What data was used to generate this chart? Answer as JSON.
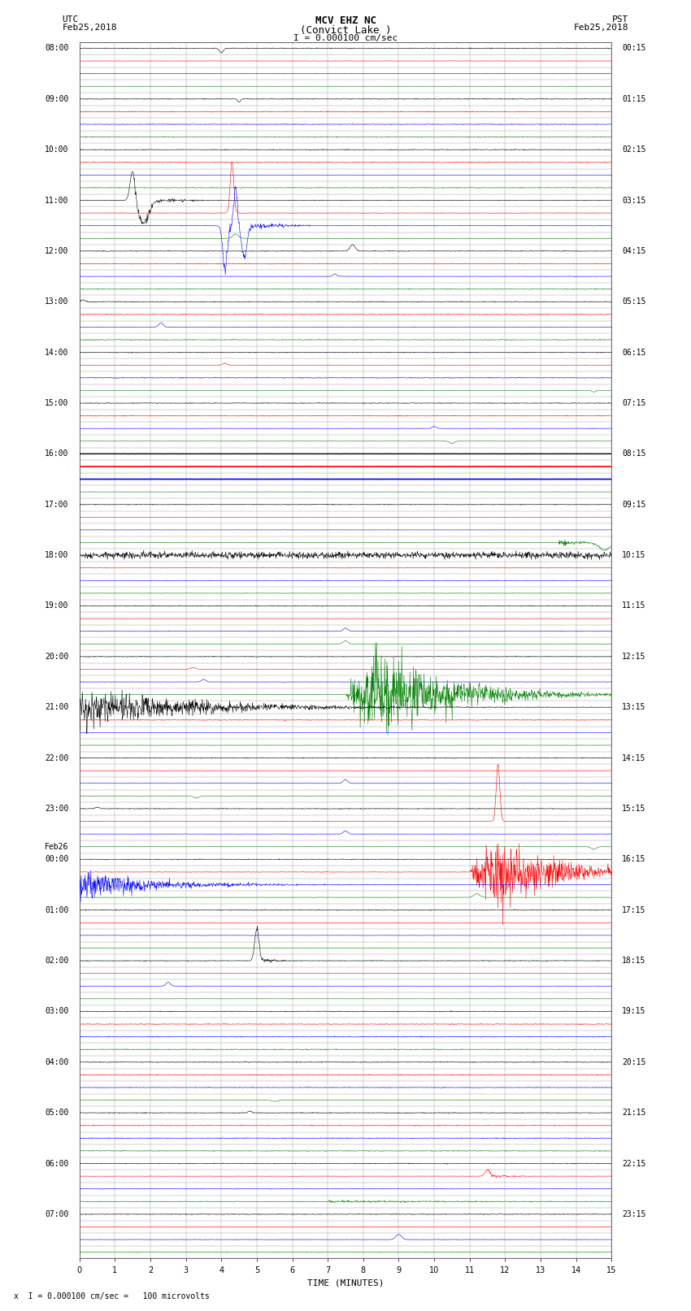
{
  "title_line1": "MCV EHZ NC",
  "title_line2": "(Convict Lake )",
  "title_scale": "I = 0.000100 cm/sec",
  "label_left_top": "UTC",
  "label_left_date": "Feb25,2018",
  "label_right_top": "PST",
  "label_right_date": "Feb25,2018",
  "xlabel": "TIME (MINUTES)",
  "footer_text": "x  I = 0.000100 cm/sec =   100 microvolts",
  "background_color": "#ffffff",
  "grid_color": "#999999",
  "trace_colors_cycle": [
    "black",
    "red",
    "blue",
    "green"
  ],
  "x_ticks": [
    0,
    1,
    2,
    3,
    4,
    5,
    6,
    7,
    8,
    9,
    10,
    11,
    12,
    13,
    14,
    15
  ],
  "xlim": [
    0,
    15
  ],
  "seed": 42,
  "right_labels_pst": [
    "00:15",
    "01:15",
    "02:15",
    "03:15",
    "04:15",
    "05:15",
    "06:15",
    "07:15",
    "08:15",
    "09:15",
    "10:15",
    "11:15",
    "12:15",
    "13:15",
    "14:15",
    "15:15",
    "16:15",
    "17:15",
    "18:15",
    "19:15",
    "20:15",
    "21:15",
    "22:15",
    "23:15"
  ]
}
